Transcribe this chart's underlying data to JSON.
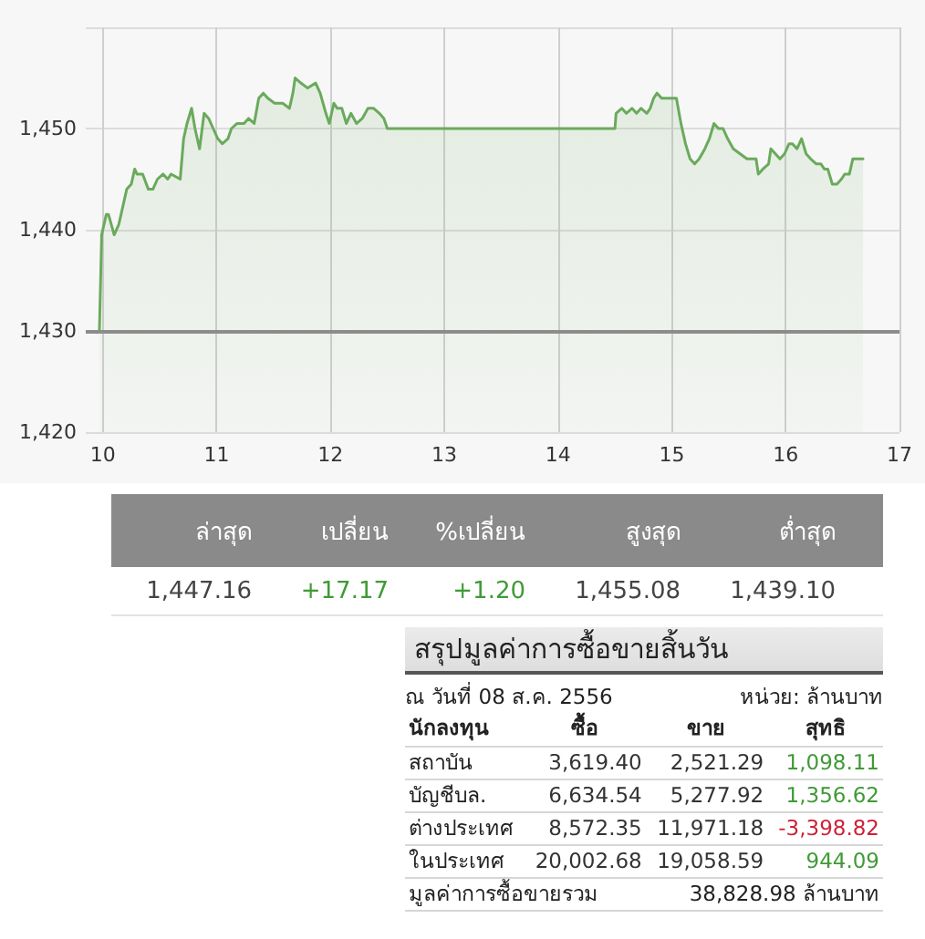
{
  "chart_data": [
    {
      "type": "area",
      "x": [
        9.97,
        9.99,
        10.03,
        10.05,
        10.1,
        10.14,
        10.17,
        10.21,
        10.25,
        10.28,
        10.3,
        10.35,
        10.4,
        10.44,
        10.48,
        10.53,
        10.57,
        10.6,
        10.68,
        10.71,
        10.74,
        10.78,
        10.81,
        10.85,
        10.89,
        10.93,
        10.97,
        11.01,
        11.05,
        11.1,
        11.13,
        11.18,
        11.24,
        11.28,
        11.33,
        11.37,
        11.41,
        11.45,
        11.51,
        11.58,
        11.64,
        11.67,
        11.69,
        11.74,
        11.8,
        11.87,
        11.91,
        11.96,
        11.99,
        12.03,
        12.06,
        12.1,
        12.14,
        12.18,
        12.23,
        12.28,
        12.33,
        12.38,
        12.43,
        12.47,
        12.5,
        14.5,
        14.51,
        14.56,
        14.6,
        14.65,
        14.69,
        14.73,
        14.78,
        14.81,
        14.84,
        14.87,
        14.91,
        14.95,
        15.0,
        15.04,
        15.08,
        15.12,
        15.16,
        15.2,
        15.24,
        15.29,
        15.33,
        15.37,
        15.41,
        15.45,
        15.49,
        15.54,
        15.6,
        15.66,
        15.7,
        15.74,
        15.76,
        15.8,
        15.85,
        15.87,
        15.91,
        15.95,
        15.99,
        16.03,
        16.06,
        16.1,
        16.14,
        16.18,
        16.22,
        16.27,
        16.31,
        16.34,
        16.37,
        16.41,
        16.45,
        16.49,
        16.52,
        16.56,
        16.59,
        16.68
      ],
      "values": [
        1430,
        1439.5,
        1441.5,
        1441.5,
        1439.5,
        1440.5,
        1442,
        1444,
        1444.5,
        1446,
        1445.5,
        1445.5,
        1444,
        1444,
        1445,
        1445.5,
        1445,
        1445.5,
        1445,
        1449,
        1450.5,
        1452,
        1450,
        1448,
        1451.5,
        1451,
        1450,
        1449,
        1448.5,
        1449,
        1450,
        1450.5,
        1450.5,
        1451,
        1450.5,
        1453,
        1453.5,
        1453,
        1452.5,
        1452.5,
        1452,
        1453.5,
        1455,
        1454.5,
        1454,
        1454.5,
        1453.5,
        1451.5,
        1450.5,
        1452.5,
        1452,
        1452,
        1450.5,
        1451.5,
        1450.5,
        1451,
        1452,
        1452,
        1451.5,
        1451,
        1450,
        1450,
        1451.5,
        1452,
        1451.5,
        1452,
        1451.5,
        1452,
        1451.5,
        1452,
        1453,
        1453.5,
        1453,
        1453,
        1453,
        1453,
        1450.5,
        1448.5,
        1447,
        1446.5,
        1447,
        1448,
        1449,
        1450.5,
        1450,
        1450,
        1449,
        1448,
        1447.5,
        1447,
        1447,
        1447,
        1445.5,
        1446,
        1446.5,
        1448,
        1447.5,
        1447,
        1447.5,
        1448.5,
        1448.5,
        1448,
        1449,
        1447.5,
        1447,
        1446.5,
        1446.5,
        1446,
        1446,
        1444.5,
        1444.5,
        1445,
        1445.5,
        1445.5,
        1447,
        1447
      ],
      "color": "#6aaa5c",
      "xlim": [
        9.85,
        17
      ],
      "xticks": [
        10,
        11,
        12,
        13,
        14,
        15,
        16,
        17
      ],
      "ylim": [
        1420,
        1460
      ],
      "yticks": [
        {
          "value": 1420,
          "label": "1,420"
        },
        {
          "value": 1430,
          "label": "1,430"
        },
        {
          "value": 1440,
          "label": "1,440"
        },
        {
          "value": 1450,
          "label": "1,450"
        },
        {
          "value": 1460,
          "label": null
        }
      ],
      "grid": true,
      "ref_lines": [
        {
          "axis": "y",
          "value": 1430,
          "color": "#8c8c8c"
        }
      ]
    },
    {
      "type": "other",
      "categories": [
        "ล่าสุด",
        "เปลี่ยน",
        "%เปลี่ยน",
        "สูงสุด",
        "ต่ำสุด"
      ],
      "series": [
        {
          "values": [
            1447.16,
            17.17,
            1.2,
            1455.08,
            1439.1
          ],
          "value_labels": [
            "1,447.16",
            "+17.17",
            "+1.20",
            "1,455.08",
            "1,439.10"
          ],
          "colors": [
            "#444444",
            "#3f9a36",
            "#3f9a36",
            "#444444",
            "#444444"
          ]
        }
      ]
    },
    {
      "type": "other",
      "title": "สรุปมูลค่าการซื้อขายสิ้นวัน",
      "subtitle": "ณ วันที่ 08 ส.ค. 2556",
      "xlabel": "นักลงทุน",
      "categories": [
        "สถาบัน",
        "บัญชีบล.",
        "ต่างประเทศ",
        "ในประเทศ"
      ],
      "series": [
        {
          "name": "ซื้อ",
          "color": "#333333",
          "values": [
            3619.4,
            6634.54,
            8572.35,
            20002.68
          ],
          "value_labels": [
            "3,619.40",
            "6,634.54",
            "8,572.35",
            "20,002.68"
          ]
        },
        {
          "name": "ขาย",
          "color": "#333333",
          "values": [
            2521.29,
            5277.92,
            11971.18,
            19058.59
          ],
          "value_labels": [
            "2,521.29",
            "5,277.92",
            "11,971.18",
            "19,058.59"
          ]
        },
        {
          "name": "สุทธิ",
          "colors": [
            "#3f9a36",
            "#3f9a36",
            "#d01f36",
            "#3f9a36"
          ],
          "values": [
            1098.11,
            1356.62,
            -3398.82,
            944.09
          ],
          "value_labels": [
            "1,098.11",
            "1,356.62",
            "-3,398.82",
            "944.09"
          ]
        }
      ],
      "annotations": [
        "หน่วย: ล้านบาท",
        "มูลค่าการซื้อขายรวม",
        "38,828.98 ล้านบาท"
      ]
    }
  ]
}
